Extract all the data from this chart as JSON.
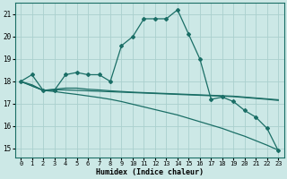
{
  "xlabel": "Humidex (Indice chaleur)",
  "xlim_min": -0.5,
  "xlim_max": 23.5,
  "ylim_min": 14.6,
  "ylim_max": 21.5,
  "xticks": [
    0,
    1,
    2,
    3,
    4,
    5,
    6,
    7,
    8,
    9,
    10,
    11,
    12,
    13,
    14,
    15,
    16,
    17,
    18,
    19,
    20,
    21,
    22,
    23
  ],
  "yticks": [
    15,
    16,
    17,
    18,
    19,
    20,
    21
  ],
  "bg_color": "#cce8e6",
  "grid_color": "#aad0ce",
  "line_color": "#1a6e66",
  "lines": [
    {
      "x": [
        0,
        1,
        2,
        3,
        4,
        5,
        6,
        7,
        8,
        9,
        10,
        11,
        12,
        13,
        14,
        15,
        16,
        17,
        18,
        19,
        20,
        21,
        22,
        23
      ],
      "y": [
        18.0,
        18.3,
        17.6,
        17.6,
        18.3,
        18.4,
        18.3,
        18.3,
        18.0,
        19.6,
        20.0,
        20.8,
        20.8,
        20.8,
        21.2,
        20.1,
        19.0,
        17.2,
        17.3,
        17.1,
        16.7,
        16.4,
        15.9,
        14.9
      ],
      "marker": "D",
      "markersize": 2.0,
      "linewidth": 0.9,
      "with_marker": true
    },
    {
      "x": [
        0,
        2,
        3,
        4,
        5,
        6,
        7,
        8,
        9,
        10,
        11,
        12,
        13,
        14,
        15,
        16,
        17,
        18,
        19,
        20,
        21,
        22,
        23
      ],
      "y": [
        18.0,
        17.6,
        17.65,
        17.7,
        17.7,
        17.65,
        17.62,
        17.58,
        17.55,
        17.52,
        17.5,
        17.48,
        17.46,
        17.44,
        17.42,
        17.4,
        17.38,
        17.36,
        17.34,
        17.3,
        17.26,
        17.22,
        17.18
      ],
      "marker": null,
      "markersize": 0,
      "linewidth": 0.9,
      "with_marker": false
    },
    {
      "x": [
        0,
        2,
        3,
        4,
        5,
        6,
        7,
        8,
        9,
        10,
        11,
        12,
        13,
        14,
        15,
        16,
        17,
        18,
        19,
        20,
        21,
        22,
        23
      ],
      "y": [
        18.0,
        17.6,
        17.63,
        17.62,
        17.6,
        17.58,
        17.56,
        17.54,
        17.52,
        17.5,
        17.48,
        17.46,
        17.44,
        17.42,
        17.4,
        17.38,
        17.36,
        17.34,
        17.32,
        17.28,
        17.24,
        17.2,
        17.15
      ],
      "marker": null,
      "markersize": 0,
      "linewidth": 0.9,
      "with_marker": false
    },
    {
      "x": [
        0,
        1,
        2,
        3,
        4,
        5,
        6,
        7,
        8,
        9,
        10,
        11,
        12,
        13,
        14,
        15,
        16,
        17,
        18,
        19,
        20,
        21,
        22,
        23
      ],
      "y": [
        18.0,
        17.85,
        17.6,
        17.55,
        17.48,
        17.42,
        17.35,
        17.28,
        17.2,
        17.1,
        16.98,
        16.86,
        16.74,
        16.62,
        16.5,
        16.35,
        16.2,
        16.05,
        15.9,
        15.72,
        15.55,
        15.35,
        15.15,
        14.93
      ],
      "marker": null,
      "markersize": 0,
      "linewidth": 0.9,
      "with_marker": false
    }
  ]
}
